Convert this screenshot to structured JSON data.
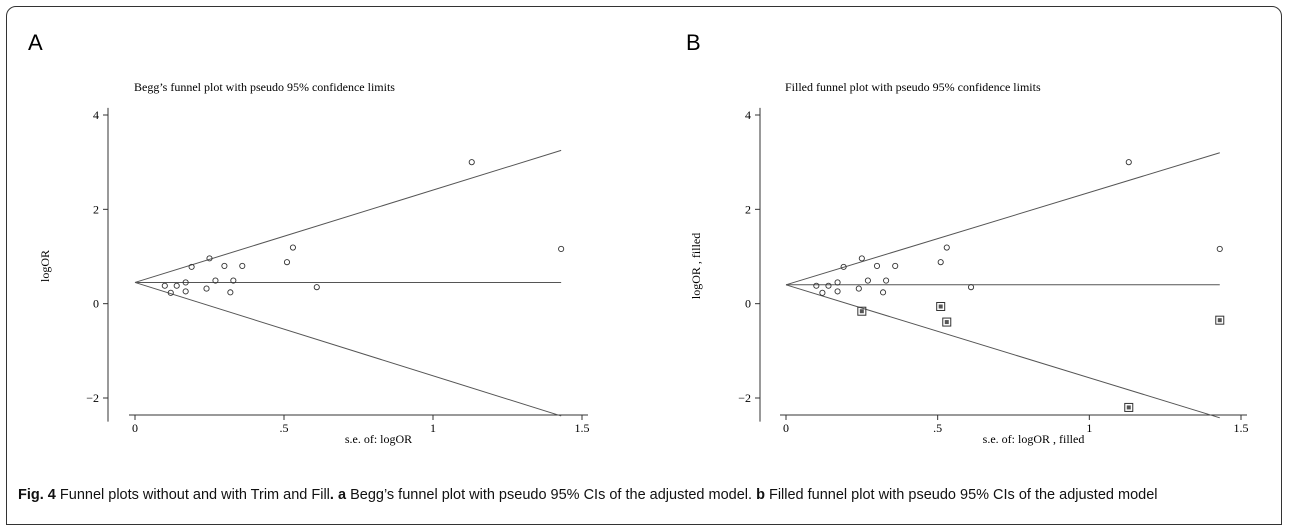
{
  "figure": {
    "caption_label": "Fig. 4",
    "caption_title": "Funnel plots without and with Trim and Fill",
    "caption_a_label": "a",
    "caption_a_text": "Begg’s funnel plot with pseudo 95% CIs of the adjusted model.",
    "caption_b_label": "b",
    "caption_b_text": "Filled funnel plot with pseudo 95% CIs of the adjusted model"
  },
  "chart_data": [
    {
      "panel": "A",
      "type": "scatter",
      "title": "Begg’s funnel plot with pseudo 95% confidence limits",
      "xlabel": "s.e. of: logOR",
      "ylabel": "logOR",
      "xlim": [
        0,
        1.5
      ],
      "ylim": [
        -2.6,
        4.2
      ],
      "xticks": [
        0,
        0.5,
        1,
        1.5
      ],
      "xtick_labels": [
        "0",
        ".5",
        "1",
        "1.5"
      ],
      "yticks": [
        -2,
        0,
        2,
        4
      ],
      "ytick_labels": [
        "−2",
        "0",
        "2",
        "4"
      ],
      "pooled_estimate": 0.45,
      "funnel_lines": {
        "upper_end": [
          1.43,
          3.25
        ],
        "lower_end": [
          1.43,
          -2.38
        ]
      },
      "series": [
        {
          "marker": "circle",
          "points": [
            [
              0.1,
              0.38
            ],
            [
              0.12,
              0.23
            ],
            [
              0.14,
              0.38
            ],
            [
              0.17,
              0.45
            ],
            [
              0.17,
              0.26
            ],
            [
              0.19,
              0.78
            ],
            [
              0.24,
              0.32
            ],
            [
              0.25,
              0.96
            ],
            [
              0.27,
              0.49
            ],
            [
              0.3,
              0.8
            ],
            [
              0.32,
              0.24
            ],
            [
              0.33,
              0.49
            ],
            [
              0.36,
              0.8
            ],
            [
              0.51,
              0.88
            ],
            [
              0.53,
              1.19
            ],
            [
              0.61,
              0.35
            ],
            [
              1.13,
              3.0
            ],
            [
              1.43,
              1.16
            ]
          ]
        }
      ]
    },
    {
      "panel": "B",
      "type": "scatter",
      "title": "Filled funnel plot with pseudo 95% confidence limits",
      "xlabel": "s.e. of: logOR , filled",
      "ylabel": "logOR , filled",
      "xlim": [
        0,
        1.5
      ],
      "ylim": [
        -2.6,
        4.2
      ],
      "xticks": [
        0,
        0.5,
        1,
        1.5
      ],
      "xtick_labels": [
        "0",
        ".5",
        "1",
        "1.5"
      ],
      "yticks": [
        -2,
        0,
        2,
        4
      ],
      "ytick_labels": [
        "−2",
        "0",
        "2",
        "4"
      ],
      "pooled_estimate": 0.4,
      "funnel_lines": {
        "upper_end": [
          1.43,
          3.2
        ],
        "lower_end": [
          1.43,
          -2.42
        ]
      },
      "series": [
        {
          "marker": "circle",
          "points": [
            [
              0.1,
              0.38
            ],
            [
              0.12,
              0.23
            ],
            [
              0.14,
              0.38
            ],
            [
              0.17,
              0.45
            ],
            [
              0.17,
              0.26
            ],
            [
              0.19,
              0.78
            ],
            [
              0.24,
              0.32
            ],
            [
              0.25,
              0.96
            ],
            [
              0.27,
              0.49
            ],
            [
              0.3,
              0.8
            ],
            [
              0.32,
              0.24
            ],
            [
              0.33,
              0.49
            ],
            [
              0.36,
              0.8
            ],
            [
              0.51,
              0.88
            ],
            [
              0.53,
              1.19
            ],
            [
              0.61,
              0.35
            ],
            [
              1.13,
              3.0
            ],
            [
              1.43,
              1.16
            ]
          ]
        },
        {
          "marker": "square-filled",
          "points": [
            [
              0.25,
              -0.16
            ],
            [
              0.51,
              -0.06
            ],
            [
              0.53,
              -0.39
            ],
            [
              1.13,
              -2.2
            ],
            [
              1.43,
              -0.35
            ]
          ]
        }
      ]
    }
  ]
}
